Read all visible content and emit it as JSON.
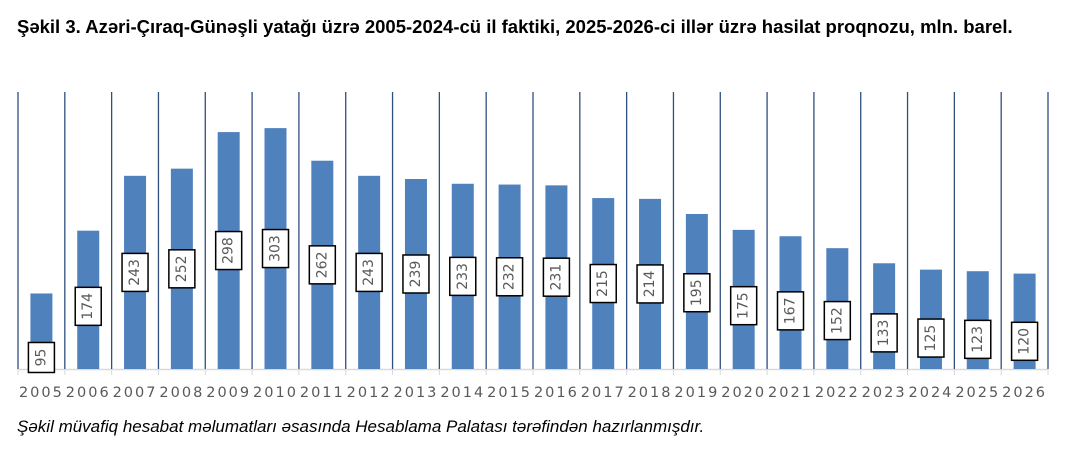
{
  "chart_data": {
    "type": "bar",
    "title": "Şəkil 3. Azəri-Çıraq-Günəşli yatağı üzrə 2005-2024-cü il faktiki, 2025-2026-ci illər üzrə hasilat proqnozu, mln. barel.",
    "categories": [
      "2005",
      "2006",
      "2007",
      "2008",
      "2009",
      "2010",
      "2011",
      "2012",
      "2013",
      "2014",
      "2015",
      "2016",
      "2017",
      "2018",
      "2019",
      "2020",
      "2021",
      "2022",
      "2023",
      "2024",
      "2025",
      "2026"
    ],
    "values": [
      95,
      174,
      243,
      252,
      298,
      303,
      262,
      243,
      239,
      233,
      232,
      231,
      215,
      214,
      195,
      175,
      167,
      152,
      133,
      125,
      123,
      120
    ],
    "xlabel": "",
    "ylabel": "",
    "ylim": [
      0,
      350
    ],
    "grid": "vertical",
    "legend": "none",
    "colors": {
      "bar": "#4f81bd",
      "gridline": "#2f4f7f",
      "label_text": "#595959",
      "axis": "#d9d9d9"
    }
  },
  "caption": "Şəkil müvafiq hesabat məlumatları əsasında Hesablama Palatası tərəfindən hazırlanmışdır."
}
